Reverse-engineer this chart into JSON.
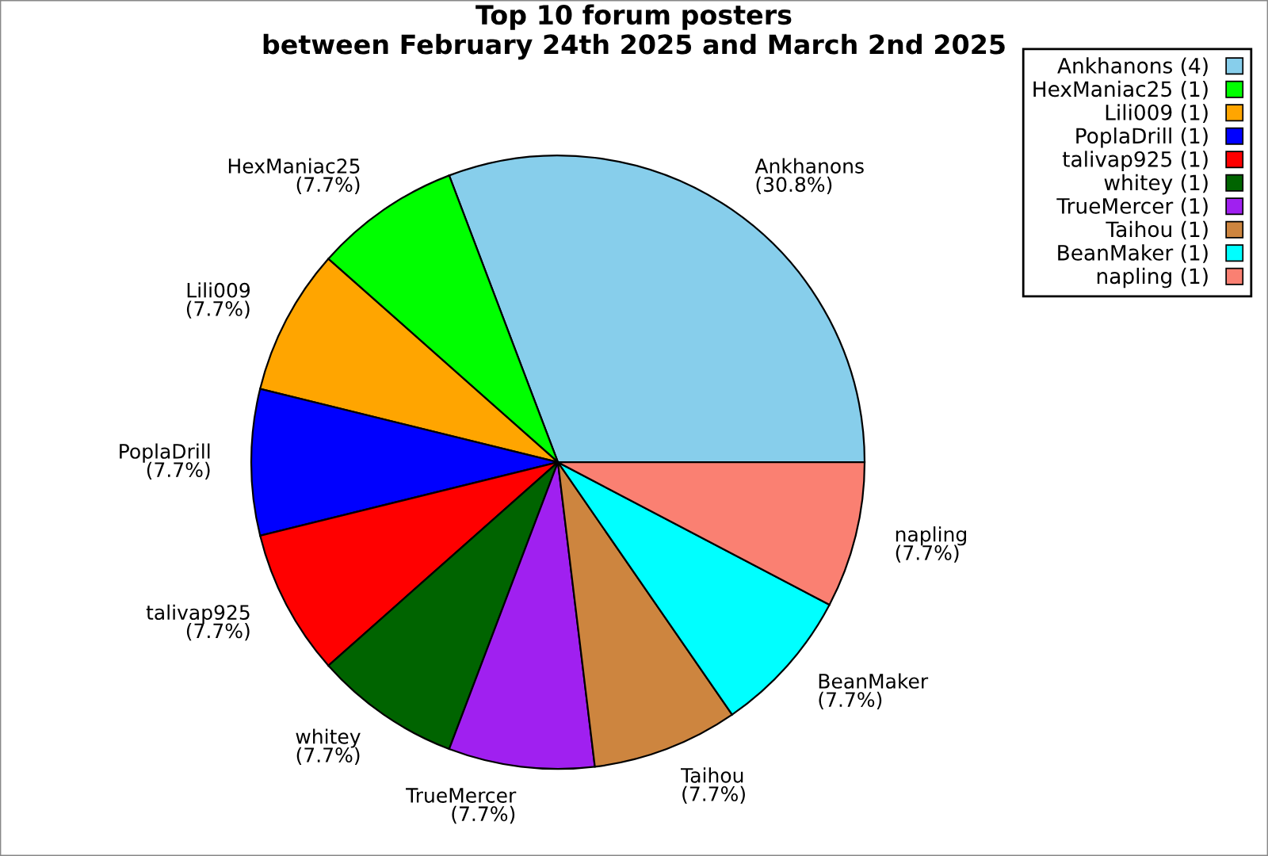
{
  "chart_data": {
    "type": "pie",
    "title": "Top 10 forum posters\nbetween February 24th 2025 and March 2nd 2025",
    "categories": [
      "Ankhanons (4)",
      "HexManiac25 (1)",
      "Lili009 (1)",
      "PoplaDrill (1)",
      "talivap925 (1)",
      "whitey (1)",
      "TrueMercer (1)",
      "Taihou (1)",
      "BeanMaker (1)",
      "napling (1)"
    ],
    "values": [
      30.8,
      7.7,
      7.7,
      7.7,
      7.7,
      7.7,
      7.7,
      7.7,
      7.7,
      7.7
    ],
    "value_labels": [
      "Ankhanons\n(30.8%)",
      "HexManiac25\n(7.7%)",
      "Lili009\n(7.7%)",
      "PoplaDrill\n(7.7%)",
      "talivap925\n(7.7%)",
      "whitey\n(7.7%)",
      "TrueMercer\n(7.7%)",
      "Taihou\n(7.7%)",
      "BeanMaker\n(7.7%)",
      "napling\n(7.7%)"
    ],
    "colors": [
      "#87ceeb",
      "#00ff00",
      "#ffa500",
      "#0000ff",
      "#ff0000",
      "#006400",
      "#a020f0",
      "#cd853f",
      "#00ffff",
      "#fa8072"
    ],
    "legend": "top right"
  }
}
